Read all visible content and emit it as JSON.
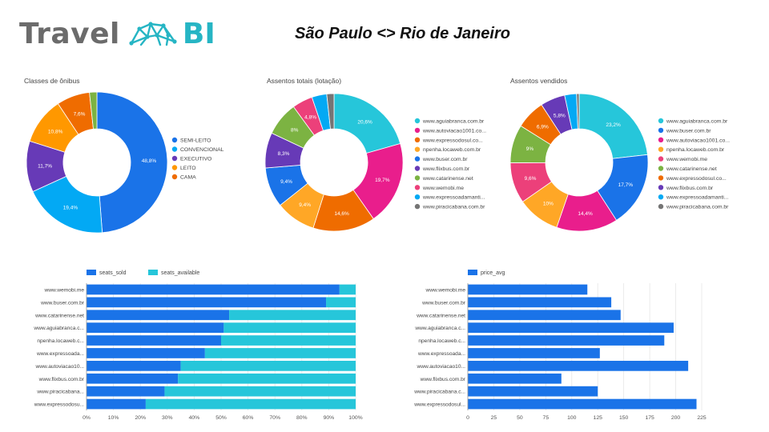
{
  "header": {
    "logo_word": "Travel",
    "logo_suffix": "BI",
    "title": "São Paulo <> Rio de Janeiro"
  },
  "colors": {
    "blue": "#1a73e8",
    "lightblue": "#03a9f4",
    "purple": "#673ab7",
    "orange": "#ff9800",
    "deeporange": "#ef6c00",
    "green": "#7cb342",
    "teal": "#26c6da",
    "pink": "#e91e8c",
    "pinkred": "#ec407a",
    "grey": "#757575",
    "logo_grey": "#6b6b6b",
    "logo_teal": "#26b5c4"
  },
  "chart_data": [
    {
      "id": "classes",
      "type": "pie",
      "title": "Classes de ônibus",
      "legend_position": "right",
      "slices": [
        {
          "label": "SEMI-LEITO",
          "value": 48.8,
          "display": "48,8%",
          "color": "#1a73e8"
        },
        {
          "label": "CONVENCIONAL",
          "value": 19.4,
          "display": "19,4%",
          "color": "#03a9f4"
        },
        {
          "label": "EXECUTIVO",
          "value": 11.7,
          "display": "11,7%",
          "color": "#673ab7"
        },
        {
          "label": "LEITO",
          "value": 10.8,
          "display": "10,8%",
          "color": "#ff9800"
        },
        {
          "label": "CAMA",
          "value": 7.6,
          "display": "7,6%",
          "color": "#ef6c00"
        },
        {
          "label": "",
          "value": 1.7,
          "display": "",
          "color": "#7cb342"
        }
      ]
    },
    {
      "id": "assentos_totais",
      "type": "pie",
      "title": "Assentos totais (lotação)",
      "legend_position": "right",
      "slices": [
        {
          "label": "www.aguiabranca.com.br",
          "value": 20.6,
          "display": "20,6%",
          "color": "#26c6da"
        },
        {
          "label": "www.autoviacao1001.co...",
          "value": 19.7,
          "display": "19,7%",
          "color": "#e91e8c"
        },
        {
          "label": "www.expressodosul.co...",
          "value": 14.6,
          "display": "14,6%",
          "color": "#ef6c00"
        },
        {
          "label": "npenha.locaweb.com.br",
          "value": 9.4,
          "display": "9,4%",
          "color": "#ffa726"
        },
        {
          "label": "www.buser.com.br",
          "value": 9.4,
          "display": "9,4%",
          "color": "#1a73e8"
        },
        {
          "label": "www.flixbus.com.br",
          "value": 8.3,
          "display": "8,3%",
          "color": "#673ab7"
        },
        {
          "label": "www.catarinense.net",
          "value": 8.0,
          "display": "8%",
          "color": "#7cb342"
        },
        {
          "label": "www.wemobi.me",
          "value": 4.8,
          "display": "4,8%",
          "color": "#ec407a"
        },
        {
          "label": "www.expressoadamanti...",
          "value": 3.5,
          "display": "",
          "color": "#03a9f4"
        },
        {
          "label": "www.piracicabana.com.br",
          "value": 1.7,
          "display": "",
          "color": "#757575"
        }
      ]
    },
    {
      "id": "assentos_vendidos",
      "type": "pie",
      "title": "Assentos vendidos",
      "legend_position": "right",
      "slices": [
        {
          "label": "www.aguiabranca.com.br",
          "value": 23.2,
          "display": "23,2%",
          "color": "#26c6da"
        },
        {
          "label": "www.buser.com.br",
          "value": 17.7,
          "display": "17,7%",
          "color": "#1a73e8"
        },
        {
          "label": "www.autoviacao1001.co...",
          "value": 14.4,
          "display": "14,4%",
          "color": "#e91e8c"
        },
        {
          "label": "npenha.locaweb.com.br",
          "value": 10.0,
          "display": "10%",
          "color": "#ffa726"
        },
        {
          "label": "www.wemobi.me",
          "value": 9.6,
          "display": "9,6%",
          "color": "#ec407a"
        },
        {
          "label": "www.catarinense.net",
          "value": 9.0,
          "display": "9%",
          "color": "#7cb342"
        },
        {
          "label": "www.expressodosul.co...",
          "value": 6.9,
          "display": "6,9%",
          "color": "#ef6c00"
        },
        {
          "label": "www.flixbus.com.br",
          "value": 5.8,
          "display": "5,8%",
          "color": "#673ab7"
        },
        {
          "label": "www.expressoadamanti...",
          "value": 2.8,
          "display": "",
          "color": "#03a9f4"
        },
        {
          "label": "www.piracicabana.com.br",
          "value": 0.6,
          "display": "",
          "color": "#757575"
        }
      ]
    },
    {
      "id": "seats",
      "type": "bar",
      "orientation": "horizontal",
      "stacked": "percent",
      "legend_position": "top-left",
      "categories": [
        "www.wemobi.me",
        "www.buser.com.br",
        "www.catarinense.net",
        "www.aguiabranca.c...",
        "npenha.locaweb.c...",
        "www.expressoada...",
        "www.autoviacao10...",
        "www.flixbus.com.br",
        "www.piracicabana...",
        "www.expressodosu..."
      ],
      "series": [
        {
          "name": "seats_sold",
          "color": "#1a73e8",
          "values": [
            94,
            89,
            53,
            51,
            50,
            44,
            35,
            34,
            29,
            22
          ]
        },
        {
          "name": "seats_available",
          "color": "#26c6da",
          "values": [
            6,
            11,
            47,
            49,
            50,
            56,
            65,
            66,
            71,
            78
          ]
        }
      ],
      "xlim": [
        0,
        100
      ],
      "xticks": [
        "0%",
        "10%",
        "20%",
        "30%",
        "40%",
        "50%",
        "60%",
        "70%",
        "80%",
        "90%",
        "100%"
      ]
    },
    {
      "id": "price",
      "type": "bar",
      "orientation": "horizontal",
      "legend_position": "top-left",
      "categories": [
        "www.wemobi.me",
        "www.buser.com.br",
        "www.catarinense.net",
        "www.aguiabranca.c...",
        "npenha.locaweb.c...",
        "www.expressoada...",
        "www.autoviacao10...",
        "www.flixbus.com.br",
        "www.piracicabana.c...",
        "www.expressodosul..."
      ],
      "series": [
        {
          "name": "price_avg",
          "color": "#1a73e8",
          "values": [
            115,
            138,
            147,
            198,
            189,
            127,
            212,
            90,
            125,
            220
          ]
        }
      ],
      "xlim": [
        0,
        225
      ],
      "xticks": [
        "0",
        "25",
        "50",
        "75",
        "100",
        "125",
        "150",
        "175",
        "200",
        "225"
      ]
    }
  ]
}
